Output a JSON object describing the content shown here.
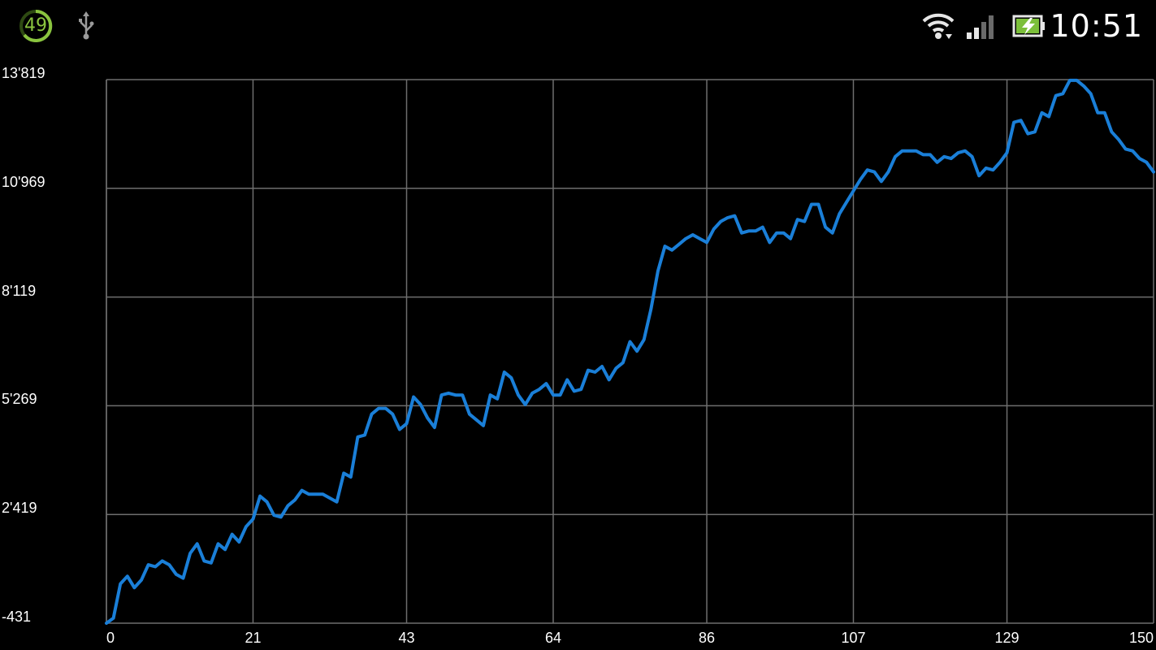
{
  "status_bar": {
    "notification_badge": "49",
    "usb_icon": "usb-icon",
    "wifi_icon": "wifi-icon",
    "signal_icon": "cell-signal-icon",
    "battery_icon": "battery-charging-icon",
    "time": "10:51",
    "accent_color": "#8ac43f"
  },
  "chart_data": {
    "type": "line",
    "title": "",
    "xlabel": "",
    "ylabel": "",
    "xlim": [
      0,
      150
    ],
    "ylim": [
      -431,
      13819
    ],
    "grid": true,
    "line_color": "#1a7fd8",
    "x_ticks": [
      "0",
      "21",
      "43",
      "64",
      "86",
      "107",
      "129",
      "150"
    ],
    "x_tick_values": [
      0,
      21,
      43,
      64,
      86,
      107,
      129,
      150
    ],
    "y_ticks": [
      "13'819",
      "10'969",
      "8'119",
      "5'269",
      "2'419",
      "-431"
    ],
    "y_tick_values": [
      13819,
      10969,
      8119,
      5269,
      2419,
      -431
    ],
    "series": [
      {
        "values": [
          [
            0,
            -431
          ],
          [
            1,
            -300
          ],
          [
            2,
            600
          ],
          [
            3,
            800
          ],
          [
            4,
            500
          ],
          [
            5,
            700
          ],
          [
            6,
            1100
          ],
          [
            7,
            1050
          ],
          [
            8,
            1200
          ],
          [
            9,
            1100
          ],
          [
            10,
            850
          ],
          [
            11,
            750
          ],
          [
            12,
            1400
          ],
          [
            13,
            1650
          ],
          [
            14,
            1200
          ],
          [
            15,
            1150
          ],
          [
            16,
            1650
          ],
          [
            17,
            1500
          ],
          [
            18,
            1900
          ],
          [
            19,
            1700
          ],
          [
            20,
            2100
          ],
          [
            21,
            2300
          ],
          [
            22,
            2900
          ],
          [
            23,
            2750
          ],
          [
            24,
            2400
          ],
          [
            25,
            2350
          ],
          [
            26,
            2650
          ],
          [
            27,
            2800
          ],
          [
            28,
            3050
          ],
          [
            29,
            2950
          ],
          [
            30,
            2950
          ],
          [
            31,
            2950
          ],
          [
            32,
            2850
          ],
          [
            33,
            2750
          ],
          [
            34,
            3500
          ],
          [
            35,
            3400
          ],
          [
            36,
            4450
          ],
          [
            37,
            4500
          ],
          [
            38,
            5050
          ],
          [
            39,
            5200
          ],
          [
            40,
            5200
          ],
          [
            41,
            5050
          ],
          [
            42,
            4650
          ],
          [
            43,
            4800
          ],
          [
            44,
            5500
          ],
          [
            45,
            5300
          ],
          [
            46,
            4950
          ],
          [
            47,
            4700
          ],
          [
            48,
            5550
          ],
          [
            49,
            5600
          ],
          [
            50,
            5550
          ],
          [
            51,
            5550
          ],
          [
            52,
            5050
          ],
          [
            53,
            4900
          ],
          [
            54,
            4750
          ],
          [
            55,
            5550
          ],
          [
            56,
            5450
          ],
          [
            57,
            6150
          ],
          [
            58,
            6000
          ],
          [
            59,
            5550
          ],
          [
            60,
            5300
          ],
          [
            61,
            5600
          ],
          [
            62,
            5700
          ],
          [
            63,
            5850
          ],
          [
            64,
            5550
          ],
          [
            65,
            5550
          ],
          [
            66,
            5950
          ],
          [
            67,
            5650
          ],
          [
            68,
            5700
          ],
          [
            69,
            6200
          ],
          [
            70,
            6150
          ],
          [
            71,
            6300
          ],
          [
            72,
            5950
          ],
          [
            73,
            6250
          ],
          [
            74,
            6400
          ],
          [
            75,
            6950
          ],
          [
            76,
            6700
          ],
          [
            77,
            7000
          ],
          [
            78,
            7800
          ],
          [
            79,
            8800
          ],
          [
            80,
            9450
          ],
          [
            81,
            9350
          ],
          [
            82,
            9500
          ],
          [
            83,
            9650
          ],
          [
            84,
            9750
          ],
          [
            85,
            9650
          ],
          [
            86,
            9550
          ],
          [
            87,
            9900
          ],
          [
            88,
            10100
          ],
          [
            89,
            10200
          ],
          [
            90,
            10250
          ],
          [
            91,
            9800
          ],
          [
            92,
            9850
          ],
          [
            93,
            9850
          ],
          [
            94,
            9950
          ],
          [
            95,
            9550
          ],
          [
            96,
            9800
          ],
          [
            97,
            9800
          ],
          [
            98,
            9650
          ],
          [
            99,
            10150
          ],
          [
            100,
            10100
          ],
          [
            101,
            10550
          ],
          [
            102,
            10550
          ],
          [
            103,
            9950
          ],
          [
            104,
            9800
          ],
          [
            105,
            10300
          ],
          [
            106,
            10600
          ],
          [
            107,
            10900
          ],
          [
            108,
            11200
          ],
          [
            109,
            11450
          ],
          [
            110,
            11400
          ],
          [
            111,
            11150
          ],
          [
            112,
            11400
          ],
          [
            113,
            11800
          ],
          [
            114,
            11950
          ],
          [
            115,
            11950
          ],
          [
            116,
            11950
          ],
          [
            117,
            11850
          ],
          [
            118,
            11850
          ],
          [
            119,
            11650
          ],
          [
            120,
            11800
          ],
          [
            121,
            11750
          ],
          [
            122,
            11900
          ],
          [
            123,
            11950
          ],
          [
            124,
            11800
          ],
          [
            125,
            11300
          ],
          [
            126,
            11500
          ],
          [
            127,
            11450
          ],
          [
            128,
            11650
          ],
          [
            129,
            11900
          ],
          [
            130,
            12700
          ],
          [
            131,
            12750
          ],
          [
            132,
            12400
          ],
          [
            133,
            12450
          ],
          [
            134,
            12950
          ],
          [
            135,
            12850
          ],
          [
            136,
            13400
          ],
          [
            137,
            13450
          ],
          [
            138,
            13800
          ],
          [
            139,
            13800
          ],
          [
            140,
            13650
          ],
          [
            141,
            13450
          ],
          [
            142,
            12950
          ],
          [
            143,
            12950
          ],
          [
            144,
            12450
          ],
          [
            145,
            12250
          ],
          [
            146,
            12000
          ],
          [
            147,
            11950
          ],
          [
            148,
            11750
          ],
          [
            149,
            11650
          ],
          [
            150,
            11400
          ]
        ]
      }
    ]
  }
}
